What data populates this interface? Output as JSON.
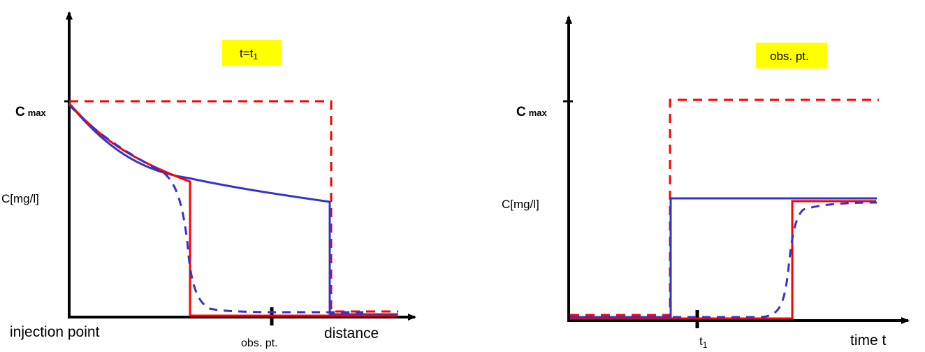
{
  "colors": {
    "axis": "#000000",
    "red": "#ff0000",
    "blue": "#3333cc",
    "highlight": "#ffff00"
  },
  "left_panel": {
    "highlight_main": "t=t",
    "highlight_sub": "1",
    "cmax_main": "C",
    "cmax_sub": "max",
    "ylabel": "C[mg/l]",
    "origin_label": "injection point",
    "obs_label": "obs. pt.",
    "xlabel": "distance"
  },
  "right_panel": {
    "highlight_label": "obs. pt.",
    "cmax_main": "C",
    "cmax_sub": "max",
    "ylabel": "C[mg/l]",
    "t1_main": "t",
    "t1_sub": "1",
    "xlabel": "time t"
  },
  "chart_data": [
    {
      "type": "line",
      "title": "t=t1",
      "xlabel": "distance",
      "ylabel": "C[mg/l]",
      "x_markers": [
        "injection point",
        "obs. pt."
      ],
      "y_markers": [
        "Cmax"
      ],
      "series": [
        {
          "style": "red dashed",
          "shape": "plug flow: Cmax from injection point to front, then zero"
        },
        {
          "style": "red solid",
          "shape": "sharp front with decay behind it"
        },
        {
          "style": "blue solid",
          "shape": "sharp front farther out with slower decay"
        },
        {
          "style": "blue dashed",
          "shape": "smooth dispersed front"
        }
      ]
    },
    {
      "type": "line",
      "title": "obs. pt.",
      "xlabel": "time t",
      "ylabel": "C[mg/l]",
      "x_markers": [
        "t1"
      ],
      "y_markers": [
        "Cmax"
      ],
      "series": [
        {
          "style": "red dashed",
          "shape": "step to Cmax"
        },
        {
          "style": "blue solid",
          "shape": "step to C[mg/l]"
        },
        {
          "style": "red solid",
          "shape": "delayed step to C[mg/l]"
        },
        {
          "style": "blue dashed",
          "shape": "smooth delayed breakthrough"
        }
      ]
    }
  ]
}
